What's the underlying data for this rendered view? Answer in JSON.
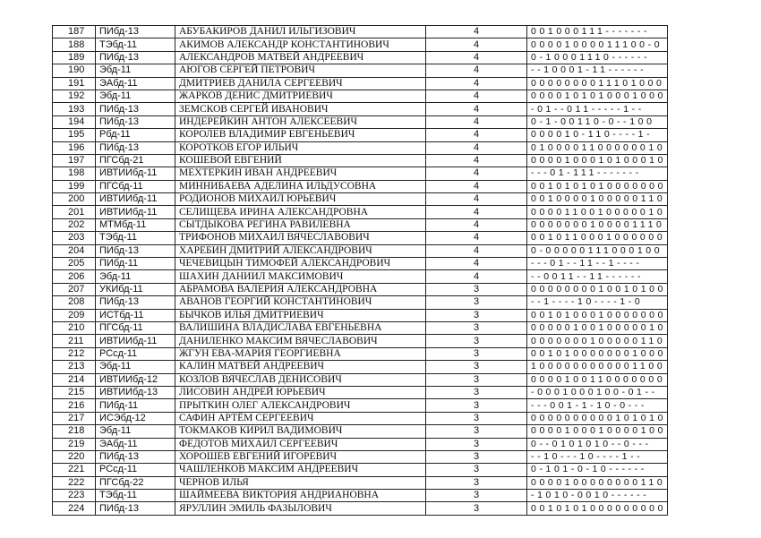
{
  "table": {
    "rows": [
      [
        187,
        "ПИбд-13",
        "АБУБАКИРОВ ДАНИЛ ИЛЬГИЗОВИЧ",
        4,
        "001000111-------"
      ],
      [
        188,
        "ТЭбд-11",
        "АКИМОВ АЛЕКСАНДР КОНСТАНТИНОВИЧ",
        4,
        "00001000011100-0"
      ],
      [
        189,
        "ПИбд-13",
        "АЛЕКСАНДРОВ МАТВЕЙ АНДРЕЕВИЧ",
        4,
        "0-10001110------"
      ],
      [
        190,
        "Эбд-11",
        "АЮГОВ СЕРГЕЙ ПЕТРОВИЧ",
        4,
        "--10001-11------"
      ],
      [
        191,
        "ЭАбд-11",
        "ДМИТРИЕВ ДАНИЛА СЕРГЕЕВИЧ",
        4,
        "0000000011101000"
      ],
      [
        192,
        "Эбд-11",
        "ЖАРКОВ ДЕНИС ДМИТРИЕВИЧ",
        4,
        "0000101010001000"
      ],
      [
        193,
        "ПИбд-13",
        "ЗЕМСКОВ СЕРГЕЙ ИВАНОВИЧ",
        4,
        "-01--011-----1--"
      ],
      [
        194,
        "ПИбд-13",
        "ИНДЕРЕЙКИН АНТОН АЛЕКСЕЕВИЧ",
        4,
        "0-1-00110-0--100"
      ],
      [
        195,
        "Рбд-11",
        "КОРОЛЕВ ВЛАДИМИР ЕВГЕНЬЕВИЧ",
        4,
        "000010-110----1-"
      ],
      [
        196,
        "ПИбд-13",
        "КОРОТКОВ ЕГОР ИЛЬИЧ",
        4,
        "0100001100000010"
      ],
      [
        197,
        "ПГСбд-21",
        "КОШЕВОЙ ЕВГЕНИЙ",
        4,
        "0000100010100010"
      ],
      [
        198,
        "ИВТИИбд-11",
        "МЕХТЕРКИН ИВАН АНДРЕЕВИЧ",
        4,
        "---01-111-------"
      ],
      [
        199,
        "ПГСбд-11",
        "МИННИБАЕВА АДЕЛИНА ИЛЬДУСОВНА",
        4,
        "0010101010000000"
      ],
      [
        200,
        "ИВТИИбд-11",
        "РОДИОНОВ МИХАИЛ ЮРЬЕВИЧ",
        4,
        "0010000100000110"
      ],
      [
        201,
        "ИВТИИбд-11",
        "СЕЛИЩЕВА ИРИНА АЛЕКСАНДРОВНА",
        4,
        "0000110010000010"
      ],
      [
        202,
        "МТМбд-11",
        "СЫТДЫКОВА РЕГИНА РАВИЛЕВНА",
        4,
        "0000000100001110"
      ],
      [
        203,
        "ТЭбд-11",
        "ТРИФОНОВ МИХАИЛ ВЯЧЕСЛАВОВИЧ",
        4,
        "0010110001000000"
      ],
      [
        204,
        "ПИбд-13",
        "ХАРЕБИН ДМИТРИЙ АЛЕКСАНДРОВИЧ",
        4,
        "0-00000111000100"
      ],
      [
        205,
        "ПИбд-11",
        "ЧЕЧЕВИЦЫН ТИМОФЕЙ АЛЕКСАНДРОВИЧ",
        4,
        "---01--11--1----"
      ],
      [
        206,
        "Эбд-11",
        "ШАХИН ДАНИИЛ МАКСИМОВИЧ",
        4,
        "--0011--11------"
      ],
      [
        207,
        "УКИбд-11",
        "АБРАМОВА ВАЛЕРИЯ АЛЕКСАНДРОВНА",
        3,
        "0000000010010100"
      ],
      [
        208,
        "ПИбд-13",
        "АВАНОВ ГЕОРГИЙ КОНСТАНТИНОВИЧ",
        3,
        "--1----10----1-0"
      ],
      [
        209,
        "ИСТбд-11",
        "БЫЧКОВ ИЛЬЯ ДМИТРИЕВИЧ",
        3,
        "0010100010000000"
      ],
      [
        210,
        "ПГСбд-11",
        "ВАЛИШИНА ВЛАДИСЛАВА ЕВГЕНЬЕВНА",
        3,
        "0000010010000010"
      ],
      [
        211,
        "ИВТИИбд-11",
        "ДАНИЛЕНКО МАКСИМ ВЯЧЕСЛАВОВИЧ",
        3,
        "0000000100000110"
      ],
      [
        212,
        "РСсд-11",
        "ЖГУН ЕВА-МАРИЯ ГЕОРГИЕВНА",
        3,
        "0010100000001000"
      ],
      [
        213,
        "Эбд-11",
        "КАЛИН МАТВЕЙ АНДРЕЕВИЧ",
        3,
        "1000000000001100"
      ],
      [
        214,
        "ИВТИИбд-12",
        "КОЗЛОВ ВЯЧЕСЛАВ ДЕНИСОВИЧ",
        3,
        "0000100110000000"
      ],
      [
        215,
        "ИВТИИбд-13",
        "ЛИСОВИН АНДРЕЙ ЮРЬЕВИЧ",
        3,
        "-0001000100-01--"
      ],
      [
        216,
        "ПИбд-11",
        "ПРЫТКИН ОЛЕГ АЛЕКСАНДРОВИЧ",
        3,
        "---001-1-10-0---"
      ],
      [
        217,
        "ИСЭбд-12",
        "САФИН АРТЁМ СЕРГЕЕВИЧ",
        3,
        "0000000000101010"
      ],
      [
        218,
        "Эбд-11",
        "ТОКМАКОВ КИРИЛ ВАДИМОВИЧ",
        3,
        "0000100010000100"
      ],
      [
        219,
        "ЭАбд-11",
        "ФЕДОТОВ МИХАИЛ СЕРГЕЕВИЧ",
        3,
        "0--0101010--0---"
      ],
      [
        220,
        "ПИбд-13",
        "ХОРОШЕВ ЕВГЕНИЙ ИГОРЕВИЧ",
        3,
        "--10---10----1--"
      ],
      [
        221,
        "РСсд-11",
        "ЧАШЛЕНКОВ МАКСИМ АНДРЕЕВИЧ",
        3,
        "0-101-0-10------"
      ],
      [
        222,
        "ПГСбд-22",
        "ЧЕРНОВ ИЛЬЯ",
        3,
        "0000100000000110"
      ],
      [
        223,
        "ТЭбд-11",
        "ШАЙМЕЕВА ВИКТОРИЯ АНДРИАНОВНА",
        3,
        "-1010-0010------"
      ],
      [
        224,
        "ПИбд-13",
        "ЯРУЛЛИН ЭМИЛЬ ФАЗЫЛОВИЧ",
        3,
        "0010101000000000"
      ]
    ]
  }
}
